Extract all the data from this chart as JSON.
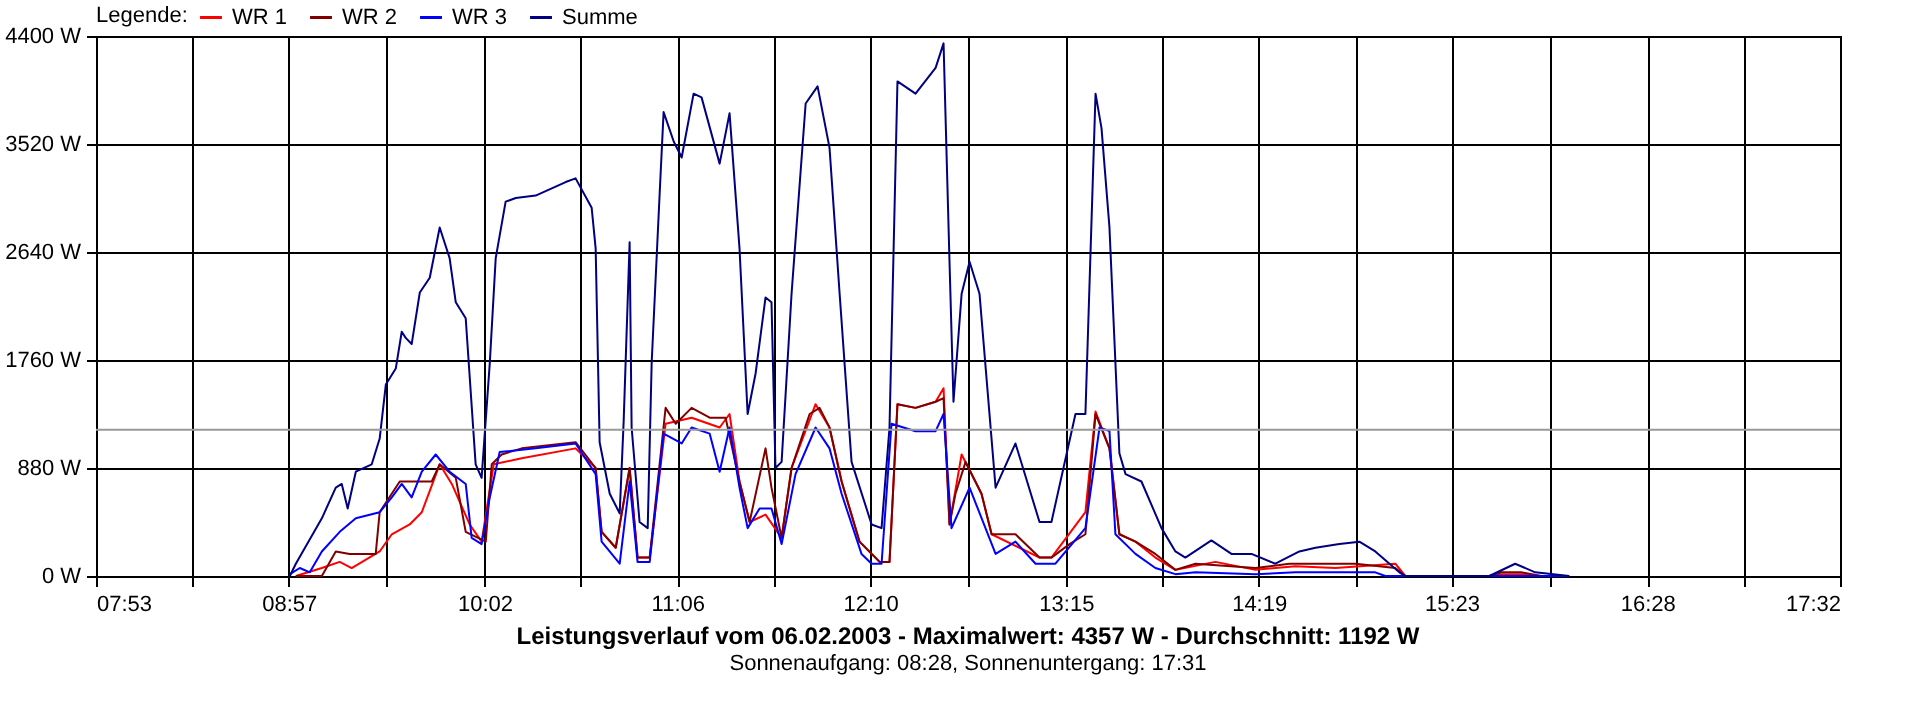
{
  "chart_data": {
    "type": "line",
    "title": "Leistungsverlauf vom 06.02.2003 - Maximalwert: 4357 W - Durchschnitt: 1192 W",
    "subtitle": "Sonnenaufgang: 08:28, Sonnenuntergang: 17:31",
    "legend_title": "Legende:",
    "legend": "top left",
    "grid": true,
    "xlim": [
      7.8833,
      17.5333
    ],
    "xticks": [
      {
        "value": 7.8833,
        "label": "07:53"
      },
      {
        "value": 8.4167,
        "label": null
      },
      {
        "value": 8.95,
        "label": "08:57"
      },
      {
        "value": 9.4917,
        "label": null
      },
      {
        "value": 10.0333,
        "label": "10:02"
      },
      {
        "value": 10.5667,
        "label": null
      },
      {
        "value": 11.1,
        "label": "11:06"
      },
      {
        "value": 11.6333,
        "label": null
      },
      {
        "value": 12.1667,
        "label": "12:10"
      },
      {
        "value": 12.7083,
        "label": null
      },
      {
        "value": 13.25,
        "label": "13:15"
      },
      {
        "value": 13.7833,
        "label": null
      },
      {
        "value": 14.3167,
        "label": "14:19"
      },
      {
        "value": 14.85,
        "label": null
      },
      {
        "value": 15.3833,
        "label": "15:23"
      },
      {
        "value": 15.925,
        "label": null
      },
      {
        "value": 16.4667,
        "label": "16:28"
      },
      {
        "value": 17.0,
        "label": null
      },
      {
        "value": 17.5333,
        "label": "17:32"
      }
    ],
    "ylim": [
      0,
      4400
    ],
    "yticks": [
      {
        "value": 0,
        "label": "0 W"
      },
      {
        "value": 880,
        "label": "880 W"
      },
      {
        "value": 1760,
        "label": "1760 W"
      },
      {
        "value": 2640,
        "label": "2640 W"
      },
      {
        "value": 3520,
        "label": "3520 W"
      },
      {
        "value": 4400,
        "label": "4400 W"
      }
    ],
    "ref_lines": [
      {
        "axis": "y",
        "value": 1192,
        "color": "#999999"
      }
    ],
    "series": [
      {
        "name": "WR 1",
        "color": "#ff0000",
        "x": [
          8.989,
          9.133,
          9.232,
          9.298,
          9.453,
          9.52,
          9.619,
          9.686,
          9.785,
          9.852,
          9.951,
          10.017,
          10.084,
          10.239,
          10.537,
          10.648,
          10.681,
          10.759,
          10.836,
          10.88,
          10.947,
          11.035,
          11.179,
          11.334,
          11.389,
          11.444,
          11.5,
          11.588,
          11.677,
          11.732,
          11.865,
          11.942,
          12.009,
          12.108,
          12.219,
          12.274,
          12.318,
          12.418,
          12.529,
          12.573,
          12.606,
          12.673,
          12.783,
          12.839,
          12.993,
          13.104,
          13.17,
          13.358,
          13.414,
          13.491,
          13.546,
          13.635,
          13.745,
          13.856,
          14.077,
          14.299,
          14.52,
          14.741,
          15.073,
          15.128,
          15.593,
          15.648,
          15.769,
          15.88
        ],
        "values": [
          0,
          65,
          115,
          65,
          200,
          340,
          420,
          520,
          910,
          750,
          420,
          280,
          910,
          960,
          1040,
          880,
          360,
          230,
          880,
          150,
          150,
          1240,
          1290,
          1210,
          1320,
          770,
          440,
          500,
          310,
          880,
          1400,
          1210,
          770,
          280,
          115,
          115,
          1400,
          1370,
          1420,
          1530,
          420,
          990,
          670,
          340,
          230,
          150,
          150,
          520,
          1340,
          1040,
          340,
          280,
          150,
          50,
          115,
          50,
          80,
          65,
          100,
          0,
          0,
          15,
          15,
          0
        ]
      },
      {
        "name": "WR 2",
        "color": "#800000",
        "x": [
          8.989,
          9.133,
          9.21,
          9.287,
          9.431,
          9.453,
          9.564,
          9.741,
          9.785,
          9.874,
          9.929,
          10.04,
          10.073,
          10.128,
          10.239,
          10.537,
          10.648,
          10.681,
          10.759,
          10.836,
          10.88,
          10.947,
          11.035,
          11.091,
          11.179,
          11.279,
          11.367,
          11.444,
          11.5,
          11.588,
          11.621,
          11.677,
          11.732,
          11.832,
          11.887,
          11.942,
          12.009,
          12.108,
          12.219,
          12.274,
          12.318,
          12.418,
          12.529,
          12.573,
          12.606,
          12.639,
          12.695,
          12.783,
          12.839,
          12.971,
          13.104,
          13.17,
          13.27,
          13.358,
          13.414,
          13.491,
          13.546,
          13.635,
          13.745,
          13.856,
          13.967,
          14.299,
          14.487,
          14.852,
          15.073,
          15.128,
          15.593,
          15.659,
          15.769,
          15.88
        ],
        "values": [
          0,
          0,
          200,
          180,
          180,
          520,
          770,
          770,
          910,
          800,
          360,
          280,
          910,
          990,
          1040,
          1090,
          880,
          360,
          230,
          880,
          150,
          150,
          1370,
          1240,
          1370,
          1290,
          1290,
          770,
          440,
          1040,
          720,
          310,
          880,
          1320,
          1370,
          1210,
          770,
          280,
          115,
          115,
          1400,
          1370,
          1420,
          1450,
          420,
          670,
          930,
          670,
          340,
          340,
          150,
          150,
          260,
          340,
          1320,
          1040,
          340,
          280,
          180,
          50,
          100,
          65,
          100,
          100,
          65,
          0,
          0,
          30,
          30,
          0
        ]
      },
      {
        "name": "WR 3",
        "color": "#0000ff",
        "x": [
          8.956,
          9.011,
          9.066,
          9.133,
          9.232,
          9.321,
          9.453,
          9.52,
          9.575,
          9.63,
          9.686,
          9.763,
          9.84,
          9.929,
          9.962,
          10.017,
          10.062,
          10.117,
          10.316,
          10.537,
          10.648,
          10.681,
          10.781,
          10.836,
          10.88,
          10.947,
          11.024,
          11.124,
          11.179,
          11.279,
          11.334,
          11.389,
          11.444,
          11.489,
          11.555,
          11.621,
          11.677,
          11.754,
          11.865,
          11.942,
          12.009,
          12.119,
          12.175,
          12.23,
          12.285,
          12.418,
          12.529,
          12.573,
          12.617,
          12.717,
          12.861,
          12.971,
          13.082,
          13.192,
          13.358,
          13.436,
          13.491,
          13.524,
          13.635,
          13.745,
          13.856,
          13.967,
          14.299,
          14.52,
          14.962,
          15.017,
          16.035
        ],
        "values": [
          15,
          65,
          30,
          200,
          360,
          470,
          520,
          640,
          750,
          640,
          850,
          990,
          850,
          750,
          310,
          260,
          640,
          1010,
          1040,
          1080,
          830,
          280,
          100,
          770,
          115,
          115,
          1160,
          1080,
          1210,
          1160,
          850,
          1210,
          720,
          390,
          550,
          550,
          260,
          830,
          1210,
          1040,
          670,
          180,
          100,
          100,
          1240,
          1180,
          1180,
          1320,
          390,
          720,
          180,
          280,
          100,
          100,
          390,
          1210,
          1180,
          340,
          180,
          65,
          15,
          30,
          15,
          30,
          30,
          0,
          0
        ]
      },
      {
        "name": "Summe",
        "color": "#000080",
        "x": [
          8.956,
          8.989,
          9.133,
          9.21,
          9.243,
          9.276,
          9.321,
          9.409,
          9.453,
          9.487,
          9.542,
          9.575,
          9.597,
          9.63,
          9.675,
          9.73,
          9.785,
          9.84,
          9.874,
          9.929,
          9.984,
          10.017,
          10.062,
          10.095,
          10.15,
          10.206,
          10.316,
          10.482,
          10.537,
          10.626,
          10.648,
          10.67,
          10.726,
          10.781,
          10.803,
          10.836,
          10.847,
          10.891,
          10.936,
          10.958,
          11.002,
          11.024,
          11.08,
          11.124,
          11.19,
          11.234,
          11.334,
          11.389,
          11.444,
          11.489,
          11.533,
          11.588,
          11.621,
          11.643,
          11.677,
          11.732,
          11.81,
          11.876,
          11.942,
          11.998,
          12.064,
          12.175,
          12.23,
          12.274,
          12.318,
          12.418,
          12.529,
          12.573,
          12.606,
          12.628,
          12.673,
          12.717,
          12.772,
          12.861,
          12.971,
          13.104,
          13.17,
          13.303,
          13.358,
          13.414,
          13.447,
          13.491,
          13.546,
          13.58,
          13.668,
          13.779,
          13.856,
          13.911,
          14.055,
          14.166,
          14.277,
          14.409,
          14.542,
          14.631,
          14.763,
          14.874,
          14.962,
          15.095,
          15.128,
          15.593,
          15.736,
          15.847,
          16.035
        ],
        "values": [
          0,
          100,
          470,
          720,
          750,
          550,
          850,
          910,
          1120,
          1560,
          1690,
          1990,
          1940,
          1890,
          2310,
          2430,
          2840,
          2590,
          2230,
          2100,
          910,
          800,
          1730,
          2590,
          3050,
          3080,
          3100,
          3210,
          3240,
          3000,
          2670,
          1090,
          670,
          510,
          1260,
          2720,
          1210,
          440,
          390,
          1740,
          3110,
          3780,
          3540,
          3410,
          3930,
          3900,
          3360,
          3770,
          2670,
          1320,
          1650,
          2270,
          2230,
          880,
          930,
          2300,
          3850,
          3990,
          3490,
          2300,
          930,
          420,
          390,
          1210,
          4030,
          3930,
          4140,
          4340,
          2560,
          1420,
          2300,
          2560,
          2300,
          720,
          1080,
          440,
          440,
          1320,
          1320,
          3930,
          3650,
          2840,
          1000,
          830,
          770,
          390,
          200,
          150,
          290,
          180,
          180,
          100,
          200,
          230,
          260,
          280,
          200,
          30,
          0,
          0,
          100,
          30,
          0
        ]
      }
    ]
  }
}
